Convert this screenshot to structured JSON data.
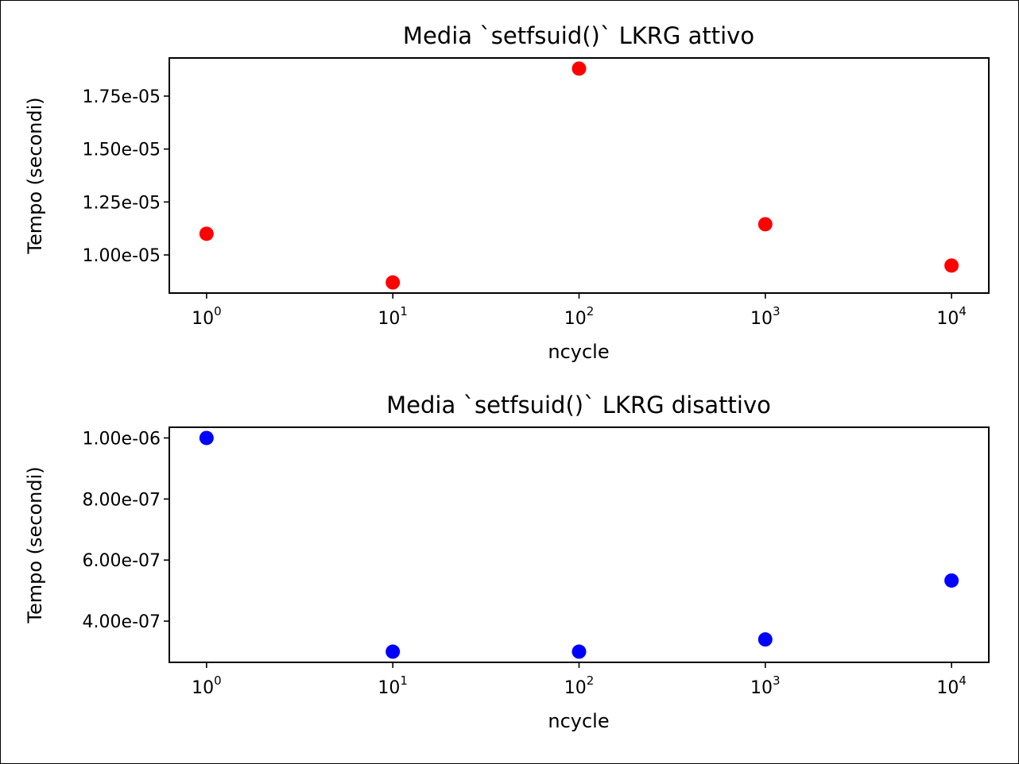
{
  "chart_data": [
    {
      "type": "scatter",
      "title": "Media `setfsuid()` LKRG attivo",
      "xlabel": "ncycle",
      "ylabel": "Tempo (secondi)",
      "xscale": "log",
      "x": [
        1,
        10,
        100,
        1000,
        10000
      ],
      "x_ticks": [
        {
          "base": "10",
          "exp": "0"
        },
        {
          "base": "10",
          "exp": "1"
        },
        {
          "base": "10",
          "exp": "2"
        },
        {
          "base": "10",
          "exp": "3"
        },
        {
          "base": "10",
          "exp": "4"
        }
      ],
      "y": [
        1.1e-05,
        8.7e-06,
        1.88e-05,
        1.145e-05,
        9.5e-06
      ],
      "y_ticks": [
        {
          "value": 1e-05,
          "label": "1.00e-05"
        },
        {
          "value": 1.25e-05,
          "label": "1.25e-05"
        },
        {
          "value": 1.5e-05,
          "label": "1.50e-05"
        },
        {
          "value": 1.75e-05,
          "label": "1.75e-05"
        }
      ],
      "ylim": [
        8.2e-06,
        1.93e-05
      ],
      "color": "#ff0000",
      "grid": false
    },
    {
      "type": "scatter",
      "title": "Media `setfsuid()` LKRG disattivo",
      "xlabel": "ncycle",
      "ylabel": "Tempo (secondi)",
      "xscale": "log",
      "x": [
        1,
        10,
        100,
        1000,
        10000
      ],
      "x_ticks": [
        {
          "base": "10",
          "exp": "0"
        },
        {
          "base": "10",
          "exp": "1"
        },
        {
          "base": "10",
          "exp": "2"
        },
        {
          "base": "10",
          "exp": "3"
        },
        {
          "base": "10",
          "exp": "4"
        }
      ],
      "y": [
        1e-06,
        3e-07,
        3e-07,
        3.4e-07,
        5.33e-07
      ],
      "y_ticks": [
        {
          "value": 4e-07,
          "label": "4.00e-07"
        },
        {
          "value": 6e-07,
          "label": "6.00e-07"
        },
        {
          "value": 8e-07,
          "label": "8.00e-07"
        },
        {
          "value": 1e-06,
          "label": "1.00e-06"
        }
      ],
      "ylim": [
        2.65e-07,
        1.035e-06
      ],
      "color": "#0000ff",
      "grid": false
    }
  ]
}
